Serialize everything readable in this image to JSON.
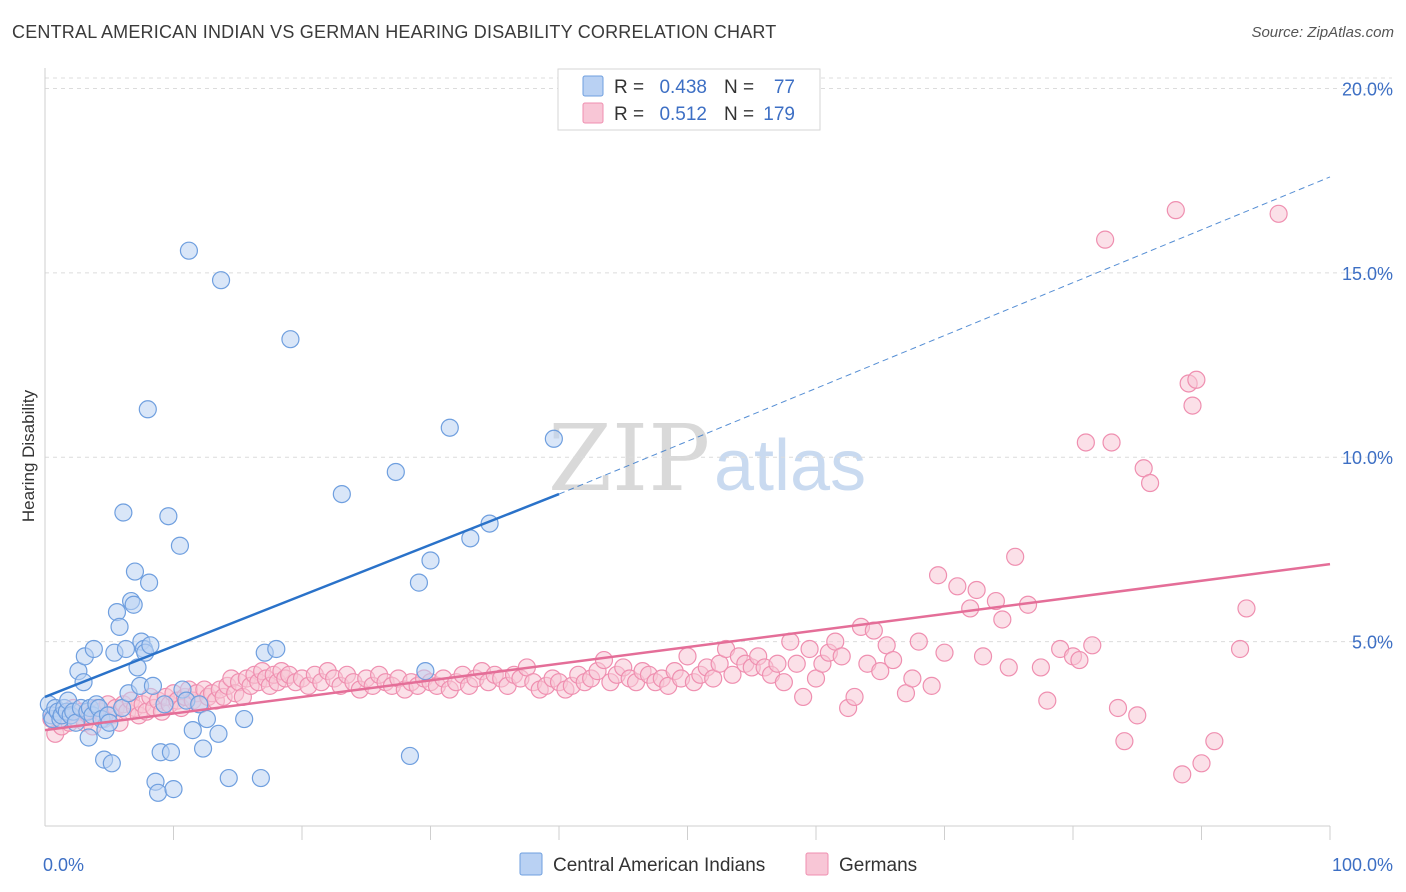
{
  "title": "CENTRAL AMERICAN INDIAN VS GERMAN HEARING DISABILITY CORRELATION CHART",
  "source": "Source: ZipAtlas.com",
  "watermark": {
    "zip": "ZIP",
    "atlas": "atlas"
  },
  "chart_data": {
    "type": "scatter",
    "ylabel": "Hearing Disability",
    "xlim": [
      0,
      100
    ],
    "ylim": [
      0,
      20.5
    ],
    "x_tick_labels": [
      {
        "value": 0,
        "label": "0.0%"
      },
      {
        "value": 100,
        "label": "100.0%"
      }
    ],
    "x_minor_ticks": [
      10,
      20,
      30,
      40,
      50,
      60,
      70,
      80,
      90,
      100
    ],
    "y_ticks": [
      {
        "value": 5,
        "label": "5.0%"
      },
      {
        "value": 10,
        "label": "10.0%"
      },
      {
        "value": 15,
        "label": "15.0%"
      },
      {
        "value": 20,
        "label": "20.0%"
      }
    ],
    "grid": "horizontal-dashed",
    "legend_position": "top-center",
    "legend": [
      {
        "r_label": "R = ",
        "r": "0.438",
        "n_label": "N = ",
        "n": "77",
        "color": "#6f9fdf",
        "fill": "#b9d1f3"
      },
      {
        "r_label": "R = ",
        "r": "0.512",
        "n_label": "N = ",
        "n": "179",
        "color": "#ef8fb0",
        "fill": "#f8c6d6"
      }
    ],
    "series": [
      {
        "name": "Central American Indians",
        "color": "#6f9fdf",
        "fill": "#b9d1f3",
        "trend_color": "#2a72c9",
        "trend": {
          "x0": 0,
          "y0": 3.5,
          "x1": 40,
          "y1": 9.0,
          "dashed_to_x": 100,
          "dashed_to_y": 17.6
        },
        "points": [
          [
            0.3,
            3.3
          ],
          [
            0.5,
            3.0
          ],
          [
            0.6,
            2.9
          ],
          [
            0.8,
            3.2
          ],
          [
            1.0,
            3.1
          ],
          [
            1.2,
            2.9
          ],
          [
            1.3,
            3.0
          ],
          [
            1.5,
            3.2
          ],
          [
            1.7,
            3.1
          ],
          [
            1.8,
            3.4
          ],
          [
            2.0,
            3.0
          ],
          [
            2.2,
            3.1
          ],
          [
            2.4,
            2.8
          ],
          [
            2.6,
            4.2
          ],
          [
            2.8,
            3.2
          ],
          [
            3.0,
            3.9
          ],
          [
            3.1,
            4.6
          ],
          [
            3.3,
            3.1
          ],
          [
            3.4,
            2.4
          ],
          [
            3.5,
            3.2
          ],
          [
            3.7,
            3.0
          ],
          [
            3.8,
            4.8
          ],
          [
            4.0,
            3.3
          ],
          [
            4.2,
            3.2
          ],
          [
            4.4,
            2.9
          ],
          [
            4.6,
            1.8
          ],
          [
            4.7,
            2.6
          ],
          [
            4.9,
            3.0
          ],
          [
            5.0,
            2.8
          ],
          [
            5.2,
            1.7
          ],
          [
            5.4,
            4.7
          ],
          [
            5.6,
            5.8
          ],
          [
            5.8,
            5.4
          ],
          [
            6.0,
            3.2
          ],
          [
            6.1,
            8.5
          ],
          [
            6.3,
            4.8
          ],
          [
            6.5,
            3.6
          ],
          [
            6.7,
            6.1
          ],
          [
            6.9,
            6.0
          ],
          [
            7.0,
            6.9
          ],
          [
            7.2,
            4.3
          ],
          [
            7.4,
            3.8
          ],
          [
            7.5,
            5.0
          ],
          [
            7.7,
            4.8
          ],
          [
            7.8,
            4.7
          ],
          [
            8.0,
            11.3
          ],
          [
            8.1,
            6.6
          ],
          [
            8.2,
            4.9
          ],
          [
            8.4,
            3.8
          ],
          [
            8.6,
            1.2
          ],
          [
            8.8,
            0.9
          ],
          [
            9.0,
            2.0
          ],
          [
            9.3,
            3.3
          ],
          [
            9.6,
            8.4
          ],
          [
            9.8,
            2.0
          ],
          [
            10.0,
            1.0
          ],
          [
            10.5,
            7.6
          ],
          [
            10.7,
            3.7
          ],
          [
            11.0,
            3.4
          ],
          [
            11.2,
            15.6
          ],
          [
            11.5,
            2.6
          ],
          [
            12.0,
            3.3
          ],
          [
            12.3,
            2.1
          ],
          [
            12.6,
            2.9
          ],
          [
            13.5,
            2.5
          ],
          [
            13.7,
            14.8
          ],
          [
            14.3,
            1.3
          ],
          [
            15.5,
            2.9
          ],
          [
            16.8,
            1.3
          ],
          [
            17.1,
            4.7
          ],
          [
            18.0,
            4.8
          ],
          [
            19.1,
            13.2
          ],
          [
            23.1,
            9.0
          ],
          [
            27.3,
            9.6
          ],
          [
            28.4,
            1.9
          ],
          [
            29.1,
            6.6
          ],
          [
            29.6,
            4.2
          ],
          [
            30.0,
            7.2
          ],
          [
            31.5,
            10.8
          ],
          [
            33.1,
            7.8
          ],
          [
            34.6,
            8.2
          ],
          [
            39.6,
            10.5
          ]
        ]
      },
      {
        "name": "Germans",
        "color": "#ef8fb0",
        "fill": "#f8c6d6",
        "trend_color": "#e46e98",
        "trend": {
          "x0": 0,
          "y0": 2.6,
          "x1": 100,
          "y1": 7.1
        },
        "points": [
          [
            0.5,
            2.9
          ],
          [
            0.8,
            2.5
          ],
          [
            1.0,
            3.1
          ],
          [
            1.3,
            2.7
          ],
          [
            1.6,
            3.0
          ],
          [
            1.9,
            2.8
          ],
          [
            2.2,
            3.2
          ],
          [
            2.5,
            2.9
          ],
          [
            2.8,
            3.1
          ],
          [
            3.1,
            2.8
          ],
          [
            3.4,
            3.0
          ],
          [
            3.7,
            2.7
          ],
          [
            4.0,
            3.2
          ],
          [
            4.3,
            3.1
          ],
          [
            4.6,
            2.9
          ],
          [
            4.9,
            3.3
          ],
          [
            5.2,
            3.0
          ],
          [
            5.5,
            3.2
          ],
          [
            5.8,
            2.8
          ],
          [
            6.1,
            3.3
          ],
          [
            6.4,
            3.1
          ],
          [
            6.7,
            3.4
          ],
          [
            7.0,
            3.2
          ],
          [
            7.3,
            3.0
          ],
          [
            7.6,
            3.3
          ],
          [
            7.9,
            3.1
          ],
          [
            8.2,
            3.5
          ],
          [
            8.5,
            3.2
          ],
          [
            8.8,
            3.4
          ],
          [
            9.1,
            3.1
          ],
          [
            9.4,
            3.5
          ],
          [
            9.7,
            3.3
          ],
          [
            10.0,
            3.6
          ],
          [
            10.3,
            3.4
          ],
          [
            10.6,
            3.2
          ],
          [
            10.9,
            3.5
          ],
          [
            11.2,
            3.7
          ],
          [
            11.5,
            3.4
          ],
          [
            11.8,
            3.6
          ],
          [
            12.1,
            3.3
          ],
          [
            12.4,
            3.7
          ],
          [
            12.7,
            3.5
          ],
          [
            13.0,
            3.6
          ],
          [
            13.3,
            3.4
          ],
          [
            13.6,
            3.7
          ],
          [
            13.9,
            3.5
          ],
          [
            14.2,
            3.8
          ],
          [
            14.5,
            4.0
          ],
          [
            14.8,
            3.6
          ],
          [
            15.1,
            3.9
          ],
          [
            15.4,
            3.5
          ],
          [
            15.7,
            4.0
          ],
          [
            16.0,
            3.8
          ],
          [
            16.3,
            4.1
          ],
          [
            16.6,
            3.9
          ],
          [
            16.9,
            4.2
          ],
          [
            17.2,
            4.0
          ],
          [
            17.5,
            3.8
          ],
          [
            17.8,
            4.1
          ],
          [
            18.1,
            3.9
          ],
          [
            18.4,
            4.2
          ],
          [
            18.7,
            4.0
          ],
          [
            19.0,
            4.1
          ],
          [
            19.5,
            3.9
          ],
          [
            20.0,
            4.0
          ],
          [
            20.5,
            3.8
          ],
          [
            21.0,
            4.1
          ],
          [
            21.5,
            3.9
          ],
          [
            22.0,
            4.2
          ],
          [
            22.5,
            4.0
          ],
          [
            23.0,
            3.8
          ],
          [
            23.5,
            4.1
          ],
          [
            24.0,
            3.9
          ],
          [
            24.5,
            3.7
          ],
          [
            25.0,
            4.0
          ],
          [
            25.5,
            3.8
          ],
          [
            26.0,
            4.1
          ],
          [
            26.5,
            3.9
          ],
          [
            27.0,
            3.8
          ],
          [
            27.5,
            4.0
          ],
          [
            28.0,
            3.7
          ],
          [
            28.5,
            3.9
          ],
          [
            29.0,
            3.8
          ],
          [
            29.5,
            4.0
          ],
          [
            30.0,
            3.9
          ],
          [
            30.5,
            3.8
          ],
          [
            31.0,
            4.0
          ],
          [
            31.5,
            3.7
          ],
          [
            32.0,
            3.9
          ],
          [
            32.5,
            4.1
          ],
          [
            33.0,
            3.8
          ],
          [
            33.5,
            4.0
          ],
          [
            34.0,
            4.2
          ],
          [
            34.5,
            3.9
          ],
          [
            35.0,
            4.1
          ],
          [
            35.5,
            4.0
          ],
          [
            36.0,
            3.8
          ],
          [
            36.5,
            4.1
          ],
          [
            37.0,
            4.0
          ],
          [
            37.5,
            4.3
          ],
          [
            38.0,
            3.9
          ],
          [
            38.5,
            3.7
          ],
          [
            39.0,
            3.8
          ],
          [
            39.5,
            4.0
          ],
          [
            40.0,
            3.9
          ],
          [
            40.5,
            3.7
          ],
          [
            41.0,
            3.8
          ],
          [
            41.5,
            4.1
          ],
          [
            42.0,
            3.9
          ],
          [
            42.5,
            4.0
          ],
          [
            43.0,
            4.2
          ],
          [
            43.5,
            4.5
          ],
          [
            44.0,
            3.9
          ],
          [
            44.5,
            4.1
          ],
          [
            45.0,
            4.3
          ],
          [
            45.5,
            4.0
          ],
          [
            46.0,
            3.9
          ],
          [
            46.5,
            4.2
          ],
          [
            47.0,
            4.1
          ],
          [
            47.5,
            3.9
          ],
          [
            48.0,
            4.0
          ],
          [
            48.5,
            3.8
          ],
          [
            49.0,
            4.2
          ],
          [
            49.5,
            4.0
          ],
          [
            50.0,
            4.6
          ],
          [
            50.5,
            3.9
          ],
          [
            51.0,
            4.1
          ],
          [
            51.5,
            4.3
          ],
          [
            52.0,
            4.0
          ],
          [
            52.5,
            4.4
          ],
          [
            53.0,
            4.8
          ],
          [
            53.5,
            4.1
          ],
          [
            54.0,
            4.6
          ],
          [
            54.5,
            4.4
          ],
          [
            55.0,
            4.3
          ],
          [
            55.5,
            4.6
          ],
          [
            56.0,
            4.3
          ],
          [
            56.5,
            4.1
          ],
          [
            57.0,
            4.4
          ],
          [
            57.5,
            3.9
          ],
          [
            58.0,
            5.0
          ],
          [
            58.5,
            4.4
          ],
          [
            59.0,
            3.5
          ],
          [
            59.5,
            4.8
          ],
          [
            60.0,
            4.0
          ],
          [
            60.5,
            4.4
          ],
          [
            61.0,
            4.7
          ],
          [
            61.5,
            5.0
          ],
          [
            62.0,
            4.6
          ],
          [
            62.5,
            3.2
          ],
          [
            63.0,
            3.5
          ],
          [
            63.5,
            5.4
          ],
          [
            64.0,
            4.4
          ],
          [
            64.5,
            5.3
          ],
          [
            65.0,
            4.2
          ],
          [
            65.5,
            4.9
          ],
          [
            66.0,
            4.5
          ],
          [
            67.0,
            3.6
          ],
          [
            67.5,
            4.0
          ],
          [
            68.0,
            5.0
          ],
          [
            69.0,
            3.8
          ],
          [
            69.5,
            6.8
          ],
          [
            70.0,
            4.7
          ],
          [
            71.0,
            6.5
          ],
          [
            72.0,
            5.9
          ],
          [
            72.5,
            6.4
          ],
          [
            73.0,
            4.6
          ],
          [
            74.0,
            6.1
          ],
          [
            74.5,
            5.6
          ],
          [
            75.0,
            4.3
          ],
          [
            75.5,
            7.3
          ],
          [
            76.5,
            6.0
          ],
          [
            77.5,
            4.3
          ],
          [
            78.0,
            3.4
          ],
          [
            79.0,
            4.8
          ],
          [
            80.0,
            4.6
          ],
          [
            80.5,
            4.5
          ],
          [
            81.0,
            10.4
          ],
          [
            81.5,
            4.9
          ],
          [
            82.5,
            15.9
          ],
          [
            83.0,
            10.4
          ],
          [
            83.5,
            3.2
          ],
          [
            84.0,
            2.3
          ],
          [
            85.0,
            3.0
          ],
          [
            85.5,
            9.7
          ],
          [
            86.0,
            9.3
          ],
          [
            88.0,
            16.7
          ],
          [
            88.5,
            1.4
          ],
          [
            89.0,
            12.0
          ],
          [
            89.3,
            11.4
          ],
          [
            89.6,
            12.1
          ],
          [
            90.0,
            1.7
          ],
          [
            91.0,
            2.3
          ],
          [
            93.0,
            4.8
          ],
          [
            93.5,
            5.9
          ],
          [
            96.0,
            16.6
          ]
        ]
      }
    ]
  }
}
